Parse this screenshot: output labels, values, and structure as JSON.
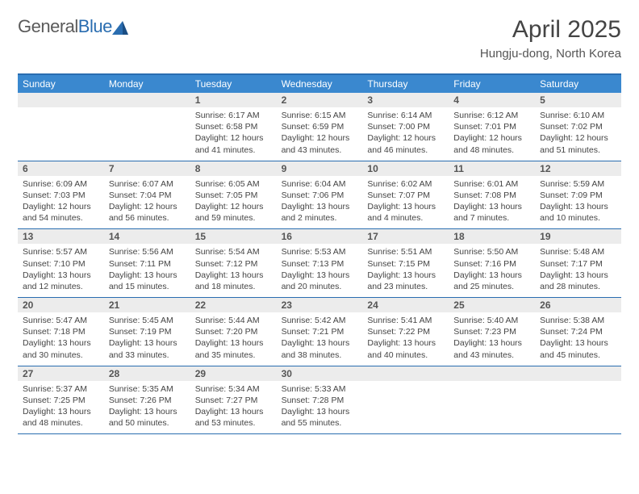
{
  "logo": {
    "word1": "General",
    "word2": "Blue"
  },
  "title": "April 2025",
  "location": "Hungju-dong, North Korea",
  "colors": {
    "header_bg": "#3a88cf",
    "border": "#2a6db0",
    "daynum_bg": "#ececec",
    "text": "#3a3a3a"
  },
  "weekday_labels": [
    "Sunday",
    "Monday",
    "Tuesday",
    "Wednesday",
    "Thursday",
    "Friday",
    "Saturday"
  ],
  "weeks": [
    [
      {
        "num": "",
        "sunrise": "",
        "sunset": "",
        "daylight": ""
      },
      {
        "num": "",
        "sunrise": "",
        "sunset": "",
        "daylight": ""
      },
      {
        "num": "1",
        "sunrise": "Sunrise: 6:17 AM",
        "sunset": "Sunset: 6:58 PM",
        "daylight": "Daylight: 12 hours and 41 minutes."
      },
      {
        "num": "2",
        "sunrise": "Sunrise: 6:15 AM",
        "sunset": "Sunset: 6:59 PM",
        "daylight": "Daylight: 12 hours and 43 minutes."
      },
      {
        "num": "3",
        "sunrise": "Sunrise: 6:14 AM",
        "sunset": "Sunset: 7:00 PM",
        "daylight": "Daylight: 12 hours and 46 minutes."
      },
      {
        "num": "4",
        "sunrise": "Sunrise: 6:12 AM",
        "sunset": "Sunset: 7:01 PM",
        "daylight": "Daylight: 12 hours and 48 minutes."
      },
      {
        "num": "5",
        "sunrise": "Sunrise: 6:10 AM",
        "sunset": "Sunset: 7:02 PM",
        "daylight": "Daylight: 12 hours and 51 minutes."
      }
    ],
    [
      {
        "num": "6",
        "sunrise": "Sunrise: 6:09 AM",
        "sunset": "Sunset: 7:03 PM",
        "daylight": "Daylight: 12 hours and 54 minutes."
      },
      {
        "num": "7",
        "sunrise": "Sunrise: 6:07 AM",
        "sunset": "Sunset: 7:04 PM",
        "daylight": "Daylight: 12 hours and 56 minutes."
      },
      {
        "num": "8",
        "sunrise": "Sunrise: 6:05 AM",
        "sunset": "Sunset: 7:05 PM",
        "daylight": "Daylight: 12 hours and 59 minutes."
      },
      {
        "num": "9",
        "sunrise": "Sunrise: 6:04 AM",
        "sunset": "Sunset: 7:06 PM",
        "daylight": "Daylight: 13 hours and 2 minutes."
      },
      {
        "num": "10",
        "sunrise": "Sunrise: 6:02 AM",
        "sunset": "Sunset: 7:07 PM",
        "daylight": "Daylight: 13 hours and 4 minutes."
      },
      {
        "num": "11",
        "sunrise": "Sunrise: 6:01 AM",
        "sunset": "Sunset: 7:08 PM",
        "daylight": "Daylight: 13 hours and 7 minutes."
      },
      {
        "num": "12",
        "sunrise": "Sunrise: 5:59 AM",
        "sunset": "Sunset: 7:09 PM",
        "daylight": "Daylight: 13 hours and 10 minutes."
      }
    ],
    [
      {
        "num": "13",
        "sunrise": "Sunrise: 5:57 AM",
        "sunset": "Sunset: 7:10 PM",
        "daylight": "Daylight: 13 hours and 12 minutes."
      },
      {
        "num": "14",
        "sunrise": "Sunrise: 5:56 AM",
        "sunset": "Sunset: 7:11 PM",
        "daylight": "Daylight: 13 hours and 15 minutes."
      },
      {
        "num": "15",
        "sunrise": "Sunrise: 5:54 AM",
        "sunset": "Sunset: 7:12 PM",
        "daylight": "Daylight: 13 hours and 18 minutes."
      },
      {
        "num": "16",
        "sunrise": "Sunrise: 5:53 AM",
        "sunset": "Sunset: 7:13 PM",
        "daylight": "Daylight: 13 hours and 20 minutes."
      },
      {
        "num": "17",
        "sunrise": "Sunrise: 5:51 AM",
        "sunset": "Sunset: 7:15 PM",
        "daylight": "Daylight: 13 hours and 23 minutes."
      },
      {
        "num": "18",
        "sunrise": "Sunrise: 5:50 AM",
        "sunset": "Sunset: 7:16 PM",
        "daylight": "Daylight: 13 hours and 25 minutes."
      },
      {
        "num": "19",
        "sunrise": "Sunrise: 5:48 AM",
        "sunset": "Sunset: 7:17 PM",
        "daylight": "Daylight: 13 hours and 28 minutes."
      }
    ],
    [
      {
        "num": "20",
        "sunrise": "Sunrise: 5:47 AM",
        "sunset": "Sunset: 7:18 PM",
        "daylight": "Daylight: 13 hours and 30 minutes."
      },
      {
        "num": "21",
        "sunrise": "Sunrise: 5:45 AM",
        "sunset": "Sunset: 7:19 PM",
        "daylight": "Daylight: 13 hours and 33 minutes."
      },
      {
        "num": "22",
        "sunrise": "Sunrise: 5:44 AM",
        "sunset": "Sunset: 7:20 PM",
        "daylight": "Daylight: 13 hours and 35 minutes."
      },
      {
        "num": "23",
        "sunrise": "Sunrise: 5:42 AM",
        "sunset": "Sunset: 7:21 PM",
        "daylight": "Daylight: 13 hours and 38 minutes."
      },
      {
        "num": "24",
        "sunrise": "Sunrise: 5:41 AM",
        "sunset": "Sunset: 7:22 PM",
        "daylight": "Daylight: 13 hours and 40 minutes."
      },
      {
        "num": "25",
        "sunrise": "Sunrise: 5:40 AM",
        "sunset": "Sunset: 7:23 PM",
        "daylight": "Daylight: 13 hours and 43 minutes."
      },
      {
        "num": "26",
        "sunrise": "Sunrise: 5:38 AM",
        "sunset": "Sunset: 7:24 PM",
        "daylight": "Daylight: 13 hours and 45 minutes."
      }
    ],
    [
      {
        "num": "27",
        "sunrise": "Sunrise: 5:37 AM",
        "sunset": "Sunset: 7:25 PM",
        "daylight": "Daylight: 13 hours and 48 minutes."
      },
      {
        "num": "28",
        "sunrise": "Sunrise: 5:35 AM",
        "sunset": "Sunset: 7:26 PM",
        "daylight": "Daylight: 13 hours and 50 minutes."
      },
      {
        "num": "29",
        "sunrise": "Sunrise: 5:34 AM",
        "sunset": "Sunset: 7:27 PM",
        "daylight": "Daylight: 13 hours and 53 minutes."
      },
      {
        "num": "30",
        "sunrise": "Sunrise: 5:33 AM",
        "sunset": "Sunset: 7:28 PM",
        "daylight": "Daylight: 13 hours and 55 minutes."
      },
      {
        "num": "",
        "sunrise": "",
        "sunset": "",
        "daylight": ""
      },
      {
        "num": "",
        "sunrise": "",
        "sunset": "",
        "daylight": ""
      },
      {
        "num": "",
        "sunrise": "",
        "sunset": "",
        "daylight": ""
      }
    ]
  ]
}
